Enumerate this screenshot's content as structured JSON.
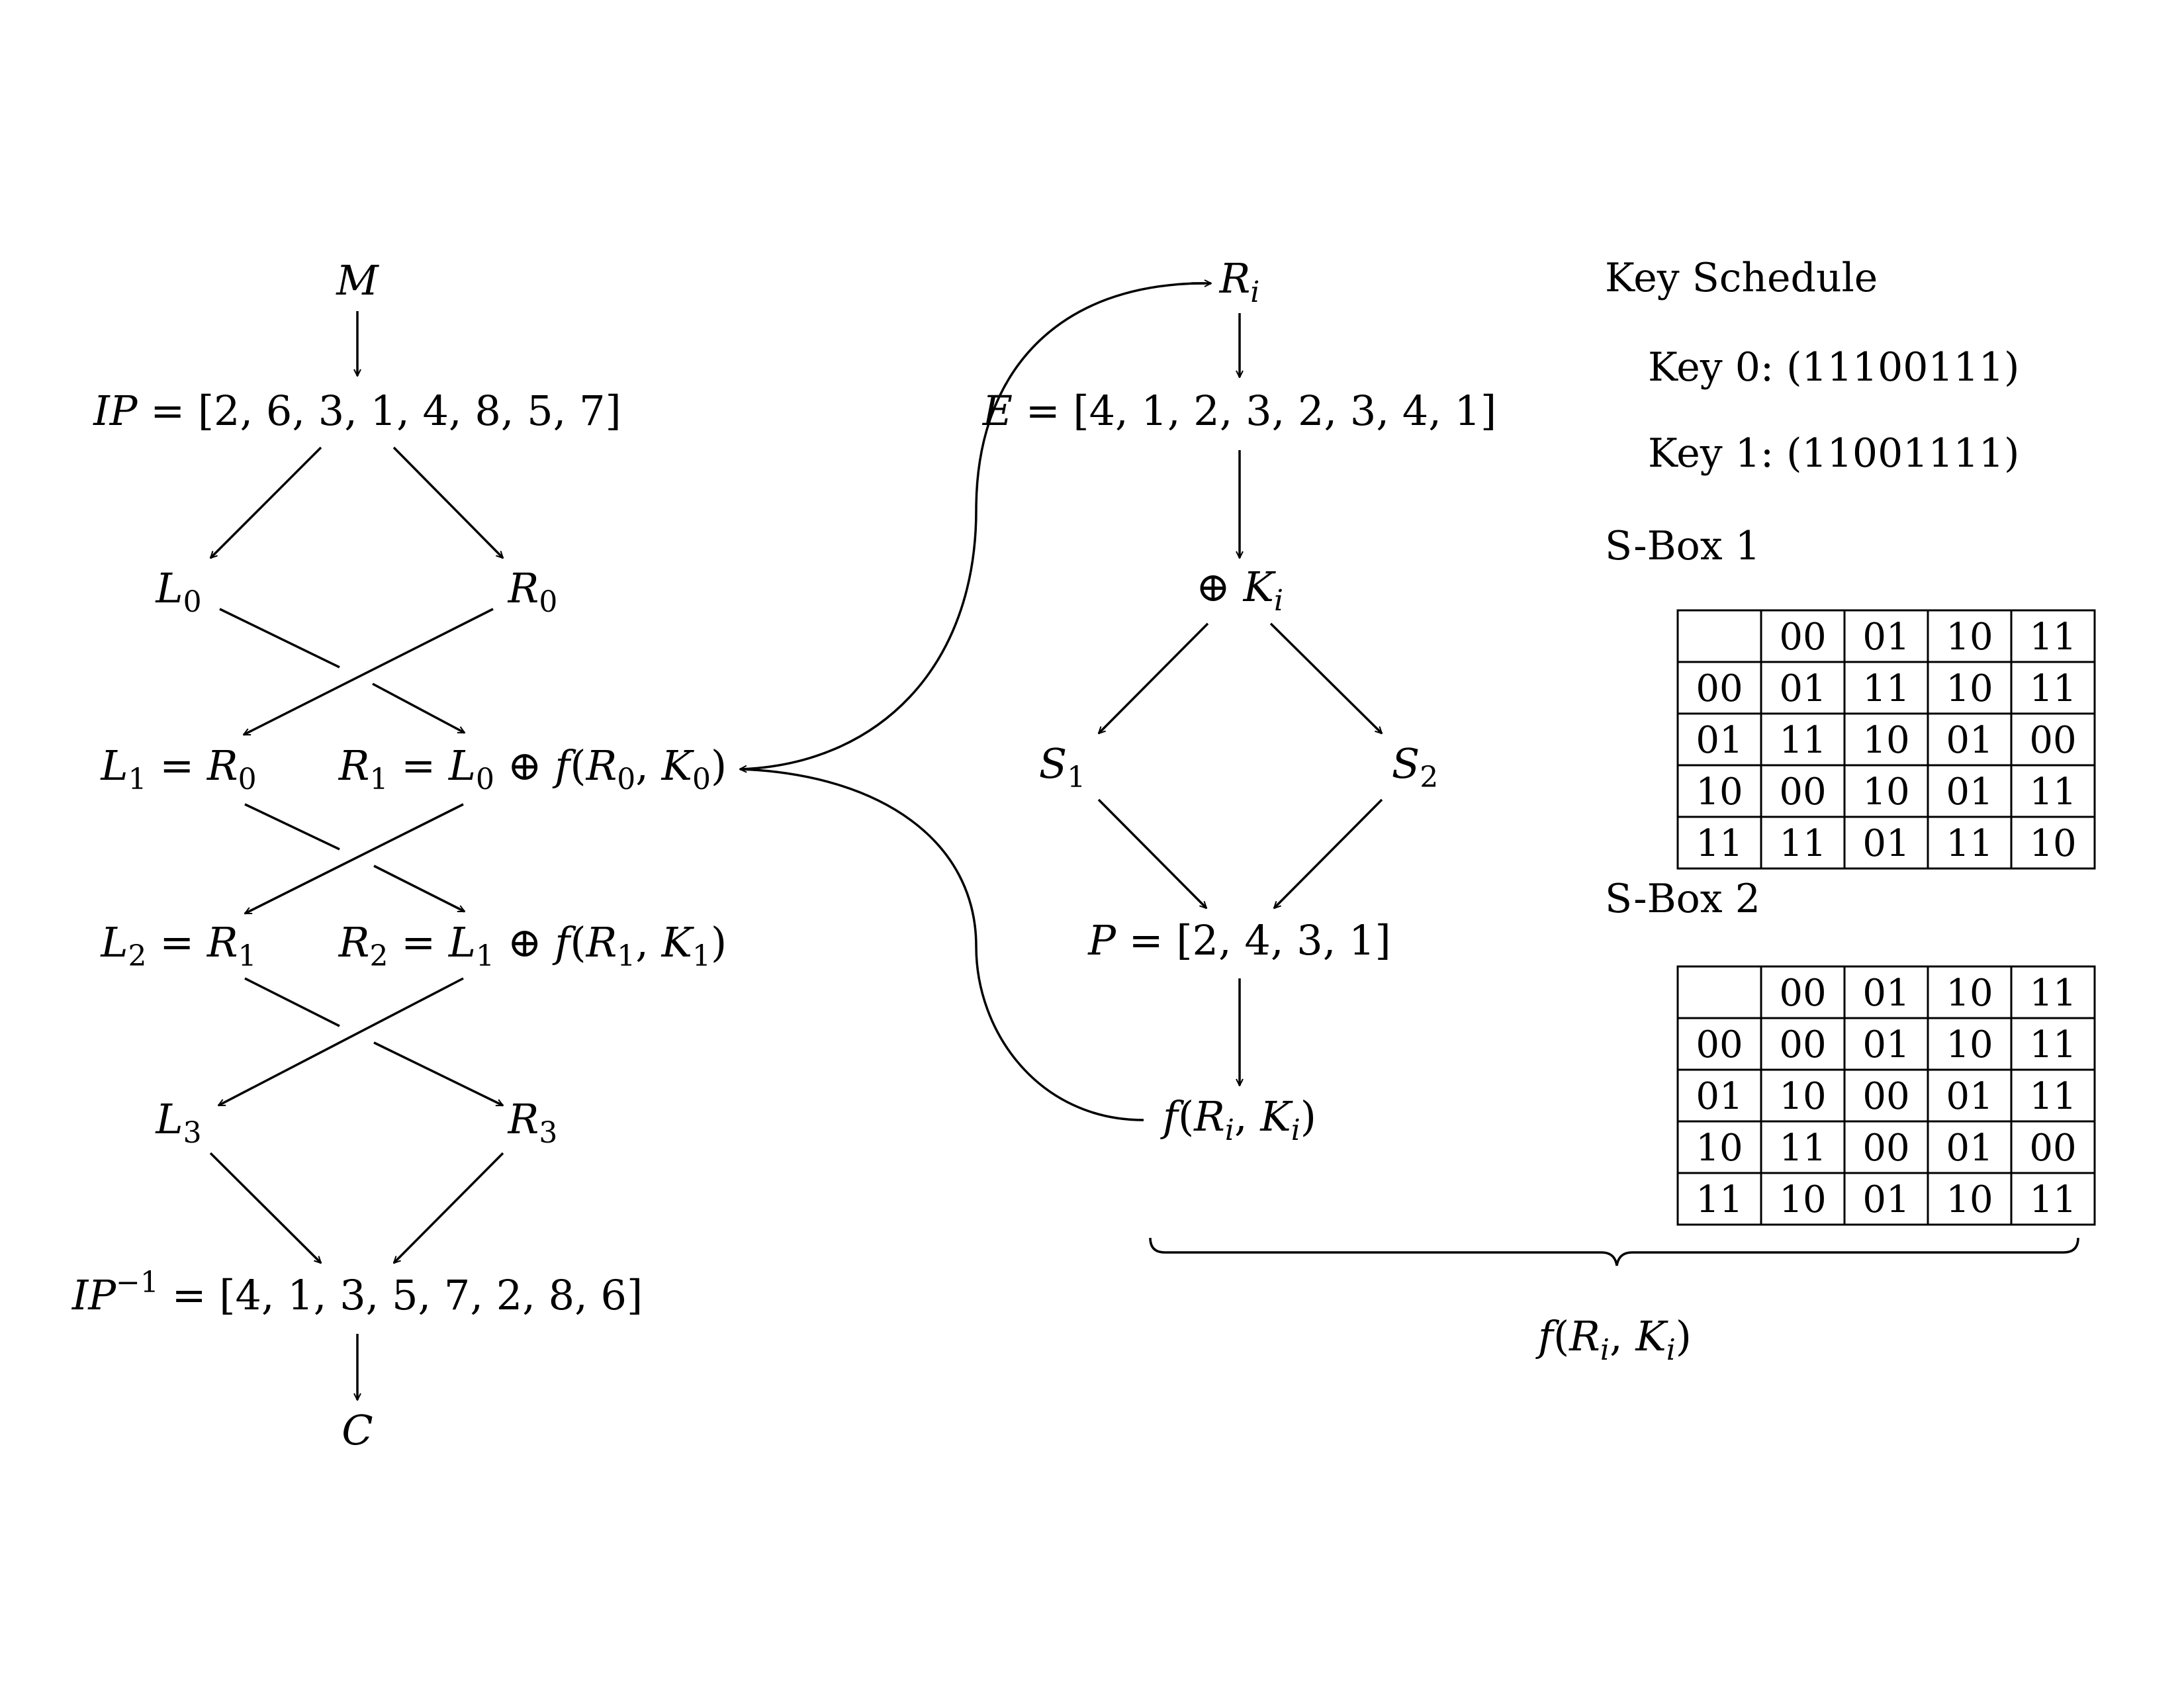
{
  "feistel": {
    "M": "M",
    "IP": "IP = [2, 6, 3, 1, 4, 8, 5, 7]",
    "L0": "L0",
    "R0": "R0",
    "L1": "L1 = R0",
    "R1": "R1 = L0 ⊕ f(R0, K0)",
    "L2": "L2 = R1",
    "R2": "R2 = L1 ⊕ f(R1, K1)",
    "L3": "L3",
    "R3": "R3",
    "IPinv": "IP^-1 = [4, 1, 3, 5, 7, 2, 8, 6]",
    "C": "C"
  },
  "f_function": {
    "Ri": "Ri",
    "E": "E = [4, 1, 2, 3, 2, 3, 4, 1]",
    "xorK": "⊕ Ki",
    "S1": "S1",
    "S2": "S2",
    "P": "P = [2, 4, 3, 1]",
    "f": "f(Ri, Ki)",
    "brace_label": "f(Ri, Ki)"
  },
  "key_schedule": {
    "title": "Key Schedule",
    "key0": "Key 0: (11100111)",
    "key1": "Key 1: (11001111)"
  },
  "sbox1": {
    "title": "S-Box 1",
    "header": [
      "",
      "00",
      "01",
      "10",
      "11"
    ],
    "rows": [
      [
        "00",
        "01",
        "11",
        "10",
        "11"
      ],
      [
        "01",
        "11",
        "10",
        "01",
        "00"
      ],
      [
        "10",
        "00",
        "10",
        "01",
        "11"
      ],
      [
        "11",
        "11",
        "01",
        "11",
        "10"
      ]
    ]
  },
  "sbox2": {
    "title": "S-Box 2",
    "header": [
      "",
      "00",
      "01",
      "10",
      "11"
    ],
    "rows": [
      [
        "00",
        "00",
        "01",
        "10",
        "11"
      ],
      [
        "01",
        "10",
        "00",
        "01",
        "11"
      ],
      [
        "10",
        "11",
        "00",
        "01",
        "00"
      ],
      [
        "11",
        "10",
        "01",
        "10",
        "11"
      ]
    ]
  }
}
